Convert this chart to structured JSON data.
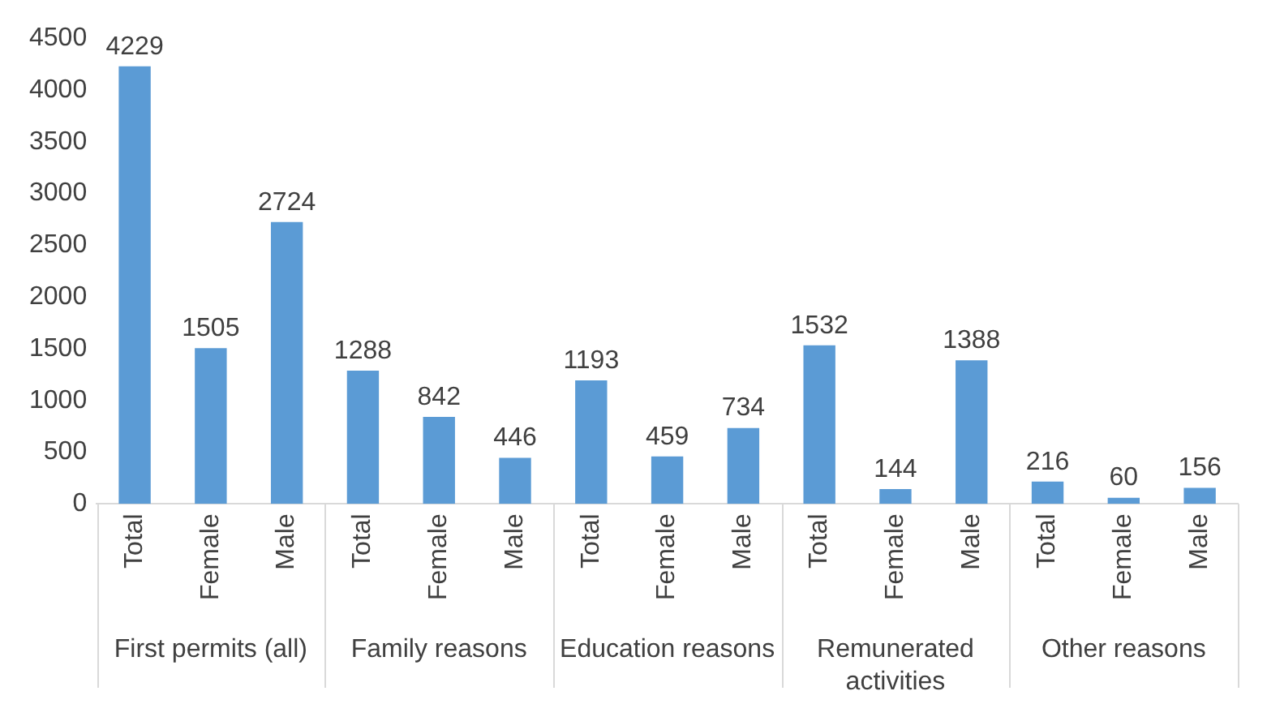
{
  "chart_data": {
    "type": "bar",
    "categories": [
      "Total",
      "Female",
      "Male",
      "Total",
      "Female",
      "Male",
      "Total",
      "Female",
      "Male",
      "Total",
      "Female",
      "Male",
      "Total",
      "Female",
      "Male"
    ],
    "values": [
      4229,
      1505,
      2724,
      1288,
      842,
      446,
      1193,
      459,
      734,
      1532,
      144,
      1388,
      216,
      60,
      156
    ],
    "color": "#5b9bd5",
    "ylim": [
      0,
      4500
    ],
    "yticks": [
      0,
      500,
      1000,
      1500,
      2000,
      2500,
      3000,
      3500,
      4000,
      4500
    ],
    "grid": false,
    "legend": false,
    "data_labels": true,
    "annotations": [
      "First permits (all)",
      "Family reasons",
      "Education reasons",
      "Remunerated activities",
      "Other reasons"
    ]
  }
}
